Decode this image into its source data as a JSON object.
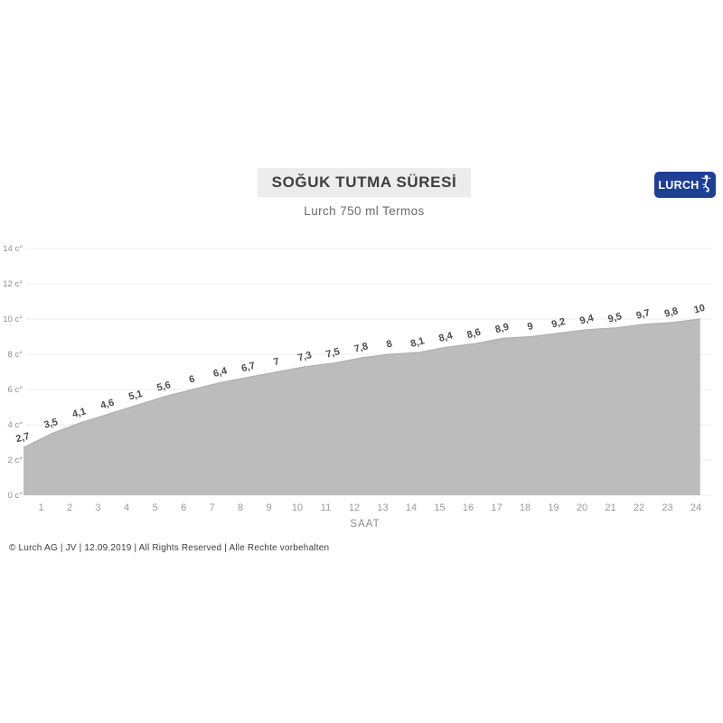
{
  "header": {
    "title": "SOĞUK TUTMA SÜRESİ",
    "subtitle": "Lurch 750 ml Termos",
    "logo": {
      "text": "LURCH",
      "bg_color": "#1e3f94"
    }
  },
  "chart_data": {
    "type": "area",
    "title": "SOĞUK TUTMA SÜRESİ",
    "subtitle": "Lurch 750 ml Termos",
    "xlabel": "SAAT",
    "x": [
      0,
      1,
      2,
      3,
      4,
      5,
      6,
      7,
      8,
      9,
      10,
      11,
      12,
      13,
      14,
      15,
      16,
      17,
      18,
      19,
      20,
      21,
      22,
      23,
      24
    ],
    "values": [
      2.7,
      3.5,
      4.1,
      4.6,
      5.1,
      5.6,
      6,
      6.4,
      6.7,
      7,
      7.3,
      7.5,
      7.8,
      8,
      8.1,
      8.4,
      8.6,
      8.9,
      9,
      9.2,
      9.4,
      9.5,
      9.7,
      9.8,
      10
    ],
    "point_labels": [
      "2,7",
      "3,5",
      "4,1",
      "4,6",
      "5,1",
      "5,6",
      "6",
      "6,4",
      "6,7",
      "7",
      "7,3",
      "7,5",
      "7,8",
      "8",
      "8,1",
      "8,4",
      "8,6",
      "8,9",
      "9",
      "9,2",
      "9,4",
      "9,5",
      "9,7",
      "9,8",
      "10"
    ],
    "x_tick_labels": [
      "1",
      "2",
      "3",
      "4",
      "5",
      "6",
      "7",
      "8",
      "9",
      "10",
      "11",
      "12",
      "13",
      "14",
      "15",
      "16",
      "17",
      "18",
      "19",
      "20",
      "21",
      "22",
      "23",
      "24"
    ],
    "y_tick_labels": [
      "0 c°",
      "2 c°",
      "4 c°",
      "6 c°",
      "8 c°",
      "10 c°",
      "12 c°",
      "14 c°"
    ],
    "ylim": [
      0,
      14
    ],
    "grid": true,
    "legend_position": "none",
    "area_color": "#bcbcbc",
    "edge_color": "#aeaeae",
    "label_color": "#4c4c4c",
    "axis_text_color": "#9a9a9a",
    "grid_color": "#ededed"
  },
  "footer": {
    "text": "© Lurch AG | JV | 12.09.2019 | All Rights Reserved | Alle Rechte vorbehalten"
  }
}
